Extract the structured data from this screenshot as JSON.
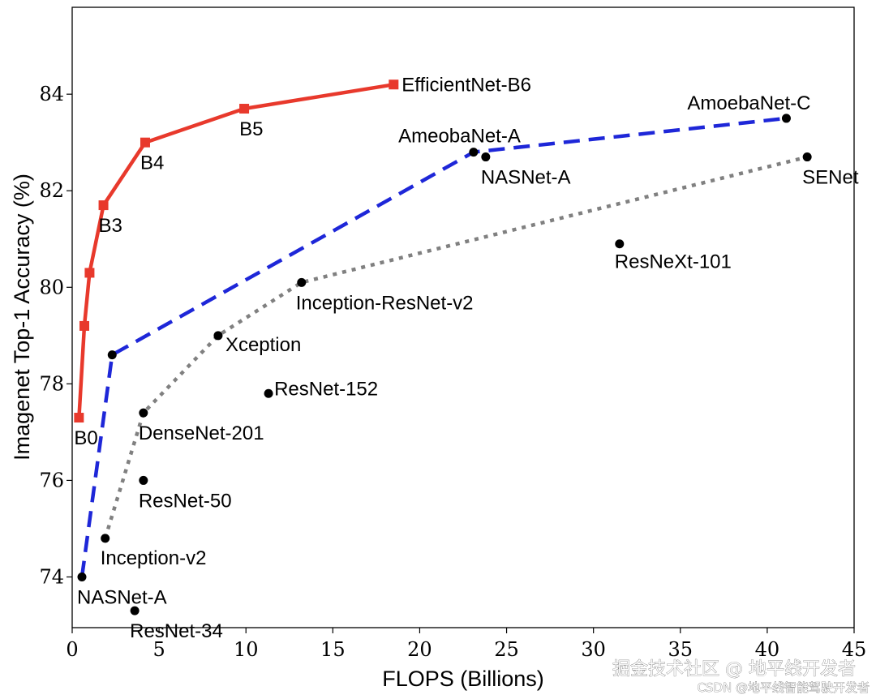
{
  "chart_data": {
    "type": "scatter",
    "title": "",
    "xlabel": "FLOPS (Billions)",
    "ylabel": "Imagenet Top-1 Accuracy (%)",
    "xlim": [
      0,
      45
    ],
    "ylim": [
      72.95,
      85.8
    ],
    "xticks": [
      0,
      5,
      10,
      15,
      20,
      25,
      30,
      35,
      40,
      45
    ],
    "yticks": [
      74,
      76,
      78,
      80,
      82,
      84
    ],
    "grid": false,
    "legend": "none",
    "series": [
      {
        "style": "solid",
        "marker": "square",
        "color": "#e8392c",
        "points": [
          {
            "x": 0.39,
            "y": 77.3,
            "label": "B0"
          },
          {
            "x": 0.7,
            "y": 79.2,
            "label": ""
          },
          {
            "x": 1.0,
            "y": 80.3,
            "label": ""
          },
          {
            "x": 1.8,
            "y": 81.7,
            "label": "B3"
          },
          {
            "x": 4.2,
            "y": 83.0,
            "label": "B4"
          },
          {
            "x": 9.9,
            "y": 83.7,
            "label": "B5"
          },
          {
            "x": 18.5,
            "y": 84.2,
            "label": "EfficientNet-B6"
          }
        ]
      },
      {
        "style": "dashed",
        "marker": "circle",
        "color": "#1e27d8",
        "points": [
          {
            "x": 0.56,
            "y": 74.0,
            "label": "NASNet-A"
          },
          {
            "x": 2.3,
            "y": 78.6,
            "label": ""
          },
          {
            "x": 23.1,
            "y": 82.8,
            "label": "AmeobaNet-A"
          },
          {
            "x": 41.1,
            "y": 83.5,
            "label": "AmoebaNet-C"
          }
        ]
      },
      {
        "style": "dotted",
        "marker": "circle",
        "color": "#808080",
        "points": [
          {
            "x": 1.9,
            "y": 74.8,
            "label": "Inception-v2"
          },
          {
            "x": 4.1,
            "y": 77.4,
            "label": "DenseNet-201"
          },
          {
            "x": 8.4,
            "y": 79.0,
            "label": "Xception"
          },
          {
            "x": 13.2,
            "y": 80.1,
            "label": "Inception-ResNet-v2"
          },
          {
            "x": 42.3,
            "y": 82.7,
            "label": "SENet"
          }
        ]
      }
    ],
    "points": [
      {
        "x": 3.6,
        "y": 73.3,
        "label": "ResNet-34"
      },
      {
        "x": 4.1,
        "y": 76.0,
        "label": "ResNet-50"
      },
      {
        "x": 11.3,
        "y": 77.8,
        "label": "ResNet-152"
      },
      {
        "x": 31.5,
        "y": 80.9,
        "label": "ResNeXt-101"
      },
      {
        "x": 23.8,
        "y": 82.7,
        "label": "NASNet-A"
      }
    ]
  },
  "watermark": {
    "line1": "掘金技术社区 @ 地平线开发者",
    "line2": "CSDN @地平线智能驾驶开发者"
  }
}
